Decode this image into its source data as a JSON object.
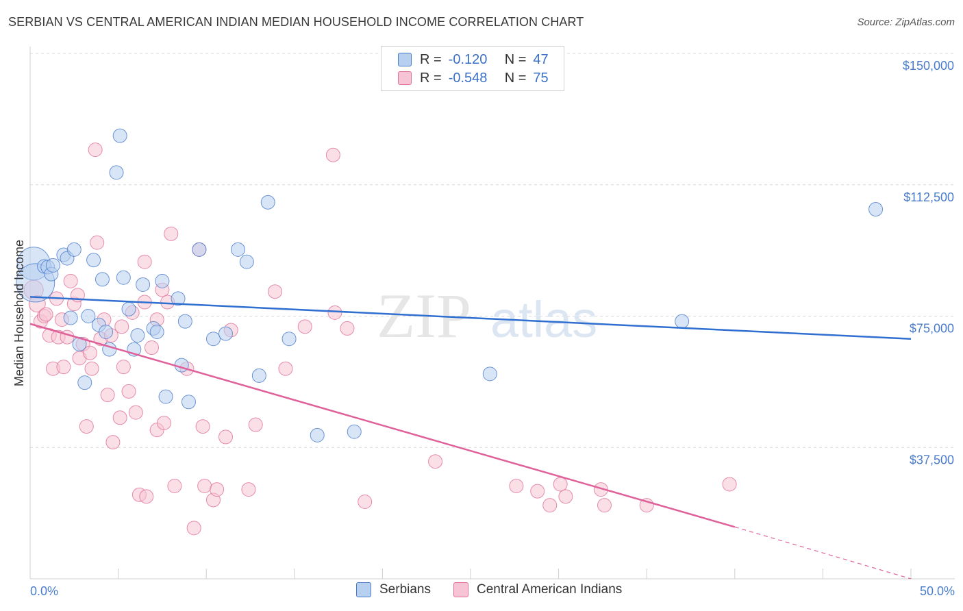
{
  "title": "SERBIAN VS CENTRAL AMERICAN INDIAN MEDIAN HOUSEHOLD INCOME CORRELATION CHART",
  "source": "Source: ZipAtlas.com",
  "watermark": {
    "zip": "ZIP",
    "atlas": "atlas"
  },
  "colors": {
    "serbians": "#4a7cc9",
    "serbians_fill": "#b8d0f0",
    "cai": "#e07098",
    "cai_fill": "#f6c4d4",
    "grid": "#d8d8d8",
    "axis_text": "#4a7cc9"
  },
  "legend": {
    "r_label": "R =",
    "n_label": "N =",
    "serbians": {
      "r": "-0.120",
      "n": "47"
    },
    "cai": {
      "r": "-0.548",
      "n": "75"
    }
  },
  "bottom_legend": {
    "serbians": "Serbians",
    "cai": "Central American Indians"
  },
  "chart_data": {
    "type": "scatter",
    "xlabel": "",
    "ylabel": "Median Household Income",
    "xlim": [
      0,
      50
    ],
    "ylim": [
      0,
      150000
    ],
    "x_tick_labels": {
      "left": "0.0%",
      "right": "50.0%"
    },
    "y_ticks": [
      {
        "value": 37500,
        "label": "$37,500"
      },
      {
        "value": 75000,
        "label": "$75,000"
      },
      {
        "value": 112500,
        "label": "$112,500"
      },
      {
        "value": 150000,
        "label": "$150,000"
      }
    ],
    "series": [
      {
        "name": "Serbians",
        "trend": {
          "x0": 0,
          "y0": 80500,
          "x1": 50,
          "y1": 68500
        },
        "points": [
          [
            0.2,
            90000,
            24
          ],
          [
            0.3,
            84500,
            28
          ],
          [
            0.8,
            89200,
            10
          ],
          [
            1.0,
            89000,
            10
          ],
          [
            1.2,
            87000,
            10
          ],
          [
            1.3,
            89500,
            10
          ],
          [
            1.9,
            92500,
            10
          ],
          [
            2.1,
            91500,
            10
          ],
          [
            2.5,
            94000,
            10
          ],
          [
            2.3,
            74500,
            10
          ],
          [
            2.8,
            67000,
            10
          ],
          [
            3.1,
            56000,
            10
          ],
          [
            3.3,
            75000,
            10
          ],
          [
            3.6,
            91000,
            10
          ],
          [
            3.9,
            72500,
            10
          ],
          [
            4.1,
            85500,
            10
          ],
          [
            4.3,
            70500,
            10
          ],
          [
            4.5,
            65500,
            10
          ],
          [
            4.9,
            116000,
            10
          ],
          [
            5.1,
            126500,
            10
          ],
          [
            5.3,
            86000,
            10
          ],
          [
            5.6,
            77000,
            10
          ],
          [
            5.9,
            65500,
            10
          ],
          [
            6.1,
            69500,
            10
          ],
          [
            6.4,
            84000,
            10
          ],
          [
            7.0,
            71500,
            10
          ],
          [
            7.2,
            70500,
            10
          ],
          [
            7.5,
            85000,
            10
          ],
          [
            7.7,
            52000,
            10
          ],
          [
            8.4,
            80000,
            10
          ],
          [
            8.6,
            61000,
            10
          ],
          [
            8.8,
            73500,
            10
          ],
          [
            9.0,
            50500,
            10
          ],
          [
            9.6,
            94000,
            10
          ],
          [
            10.4,
            68500,
            10
          ],
          [
            11.1,
            70000,
            10
          ],
          [
            11.8,
            94000,
            10
          ],
          [
            12.3,
            90500,
            10
          ],
          [
            13.0,
            58000,
            10
          ],
          [
            13.5,
            107500,
            10
          ],
          [
            14.7,
            68500,
            10
          ],
          [
            16.3,
            41000,
            10
          ],
          [
            18.4,
            42000,
            10
          ],
          [
            26.1,
            58500,
            10
          ],
          [
            37.0,
            73500,
            10
          ],
          [
            48.0,
            105500,
            10
          ]
        ]
      },
      {
        "name": "Central American Indians",
        "trend": {
          "x0": 0,
          "y0": 72800,
          "x1": 40,
          "y1": 14800,
          "dash_x1": 50,
          "dash_y1": 0
        },
        "points": [
          [
            0.2,
            82500,
            14
          ],
          [
            0.4,
            78500,
            12
          ],
          [
            0.6,
            73500,
            10
          ],
          [
            0.8,
            75000,
            10
          ],
          [
            0.9,
            75500,
            10
          ],
          [
            1.1,
            69500,
            10
          ],
          [
            1.3,
            60000,
            10
          ],
          [
            1.5,
            80000,
            10
          ],
          [
            1.6,
            69000,
            10
          ],
          [
            1.8,
            74000,
            10
          ],
          [
            1.9,
            60500,
            10
          ],
          [
            2.1,
            69000,
            10
          ],
          [
            2.3,
            85000,
            10
          ],
          [
            2.5,
            78500,
            10
          ],
          [
            2.7,
            81000,
            10
          ],
          [
            2.8,
            63000,
            10
          ],
          [
            3.0,
            67000,
            10
          ],
          [
            3.2,
            43500,
            10
          ],
          [
            3.4,
            64500,
            10
          ],
          [
            3.5,
            60000,
            10
          ],
          [
            3.7,
            122500,
            10
          ],
          [
            3.8,
            96000,
            10
          ],
          [
            4.0,
            68500,
            10
          ],
          [
            4.2,
            74000,
            10
          ],
          [
            4.4,
            52500,
            10
          ],
          [
            4.6,
            69500,
            10
          ],
          [
            4.7,
            39000,
            10
          ],
          [
            5.1,
            46000,
            10
          ],
          [
            5.2,
            72000,
            10
          ],
          [
            5.3,
            60500,
            10
          ],
          [
            5.6,
            53500,
            10
          ],
          [
            5.8,
            76000,
            10
          ],
          [
            6.0,
            47500,
            10
          ],
          [
            6.2,
            24000,
            10
          ],
          [
            6.5,
            79000,
            10
          ],
          [
            6.5,
            90500,
            10
          ],
          [
            6.6,
            23500,
            10
          ],
          [
            6.9,
            66000,
            10
          ],
          [
            7.2,
            74000,
            10
          ],
          [
            7.2,
            42500,
            10
          ],
          [
            7.5,
            82500,
            10
          ],
          [
            7.6,
            44500,
            10
          ],
          [
            7.8,
            79000,
            10
          ],
          [
            8.0,
            98500,
            10
          ],
          [
            8.2,
            26500,
            10
          ],
          [
            8.9,
            60000,
            10
          ],
          [
            9.3,
            14500,
            10
          ],
          [
            9.6,
            94000,
            10
          ],
          [
            9.8,
            43500,
            10
          ],
          [
            9.9,
            26500,
            10
          ],
          [
            10.4,
            22500,
            10
          ],
          [
            10.6,
            25500,
            10
          ],
          [
            11.1,
            40500,
            10
          ],
          [
            11.4,
            71000,
            10
          ],
          [
            12.4,
            25500,
            10
          ],
          [
            12.8,
            44000,
            10
          ],
          [
            13.9,
            82000,
            10
          ],
          [
            14.5,
            60000,
            10
          ],
          [
            15.6,
            72000,
            10
          ],
          [
            17.2,
            121000,
            10
          ],
          [
            17.3,
            76000,
            10
          ],
          [
            18.0,
            71500,
            10
          ],
          [
            19.0,
            22000,
            10
          ],
          [
            23.0,
            33500,
            10
          ],
          [
            27.6,
            26500,
            10
          ],
          [
            28.8,
            25000,
            10
          ],
          [
            29.5,
            21000,
            10
          ],
          [
            30.1,
            27000,
            10
          ],
          [
            30.4,
            23500,
            10
          ],
          [
            32.4,
            25500,
            10
          ],
          [
            32.6,
            21000,
            10
          ],
          [
            35.0,
            21000,
            10
          ],
          [
            39.7,
            27000,
            10
          ]
        ]
      }
    ]
  }
}
